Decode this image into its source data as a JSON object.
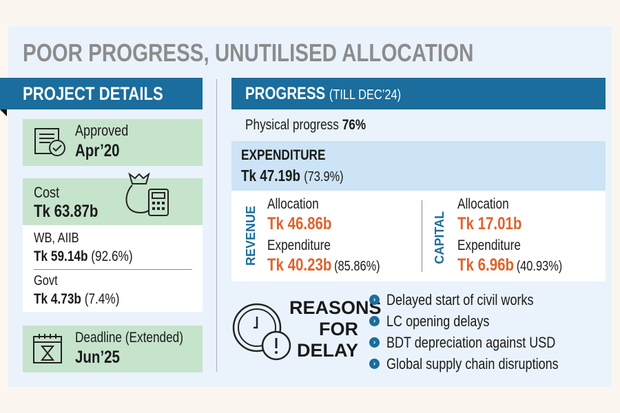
{
  "title": "POOR PROGRESS, UNUTILISED ALLOCATION",
  "project_details": {
    "header": "PROJECT DETAILS",
    "approved": {
      "label": "Approved",
      "value": "Apr’20"
    },
    "cost": {
      "label": "Cost",
      "value": "Tk 63.87b"
    },
    "wb_aiib": {
      "label": "WB, AIIB",
      "value": "Tk 59.14b",
      "share": "(92.6%)"
    },
    "govt": {
      "label": "Govt",
      "value": "Tk 4.73b",
      "share": "(7.4%)"
    },
    "deadline": {
      "label": "Deadline (Extended)",
      "value": "Jun’25"
    }
  },
  "progress": {
    "header": "PROGRESS",
    "header_sub": "(TILL DEC’24)",
    "physical_label": "Physical progress",
    "physical_value": "76%",
    "expenditure": {
      "label": "EXPENDITURE",
      "value": "Tk 47.19b",
      "share": "(73.9%)"
    },
    "revenue": {
      "label": "REVENUE",
      "alloc_label": "Allocation",
      "alloc_value": "Tk 46.86b",
      "exp_label": "Expenditure",
      "exp_value": "Tk 40.23b",
      "exp_share": "(85.86%)"
    },
    "capital": {
      "label": "CAPITAL",
      "alloc_label": "Allocation",
      "alloc_value": "Tk 17.01b",
      "exp_label": "Expenditure",
      "exp_value": "Tk 6.96b",
      "exp_share": "(40.93%)"
    }
  },
  "reasons": {
    "heading": [
      "REASONS",
      "FOR",
      "DELAY"
    ],
    "items": [
      "Delayed start of civil works",
      "LC opening delays",
      "BDT depreciation against USD",
      "Global supply chain disruptions"
    ]
  },
  "colors": {
    "blue": "#1a6d9c",
    "orange": "#e0622a",
    "green": "#c6e3cb"
  }
}
